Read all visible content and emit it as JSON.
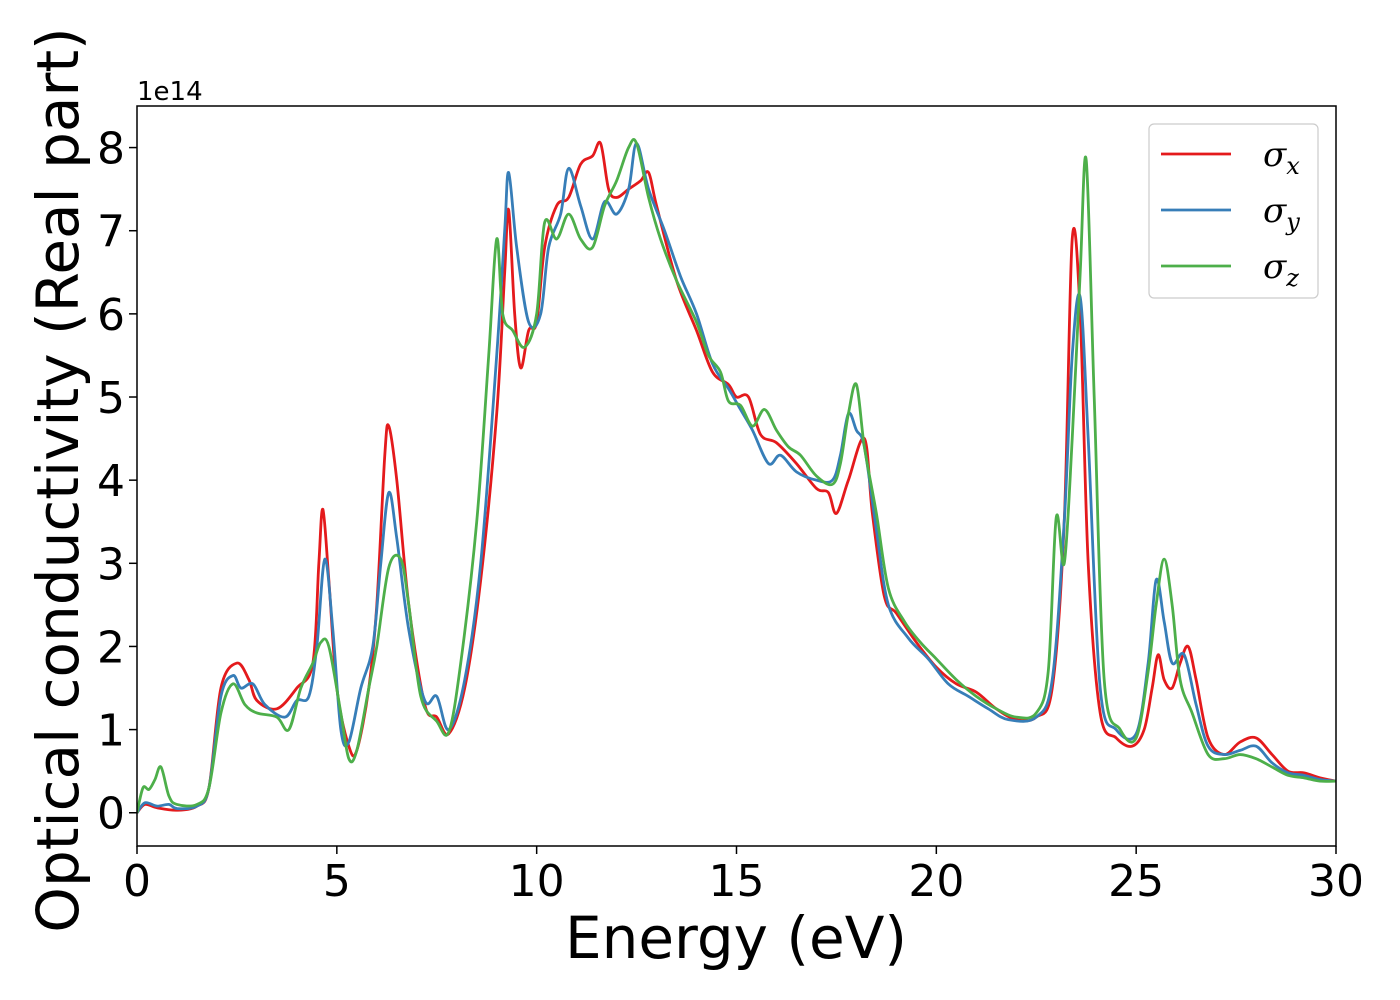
{
  "chart_data": {
    "type": "line",
    "title": "",
    "xlabel": "Energy (eV)",
    "ylabel": "Optical conductivity (Real part)",
    "y_offset_label": "1e14",
    "xlim": [
      0,
      30
    ],
    "ylim": [
      -0.4,
      8.5
    ],
    "x_ticks": [
      0,
      5,
      10,
      15,
      20,
      25,
      30
    ],
    "y_ticks": [
      0,
      1,
      2,
      3,
      4,
      5,
      6,
      7,
      8
    ],
    "grid": false,
    "legend_position": "top-right",
    "series": [
      {
        "name": "σx",
        "symbol": "σ",
        "subscript": "x",
        "color": "#e41a1c",
        "points": [
          [
            0,
            0
          ],
          [
            0.2,
            0.1
          ],
          [
            0.5,
            0.06
          ],
          [
            1.0,
            0.03
          ],
          [
            1.5,
            0.08
          ],
          [
            1.8,
            0.3
          ],
          [
            2.1,
            1.5
          ],
          [
            2.5,
            1.8
          ],
          [
            2.8,
            1.6
          ],
          [
            3.0,
            1.35
          ],
          [
            3.5,
            1.25
          ],
          [
            4.0,
            1.5
          ],
          [
            4.4,
            1.8
          ],
          [
            4.55,
            3.0
          ],
          [
            4.65,
            3.65
          ],
          [
            4.8,
            2.8
          ],
          [
            5.0,
            1.5
          ],
          [
            5.3,
            0.8
          ],
          [
            5.5,
            0.75
          ],
          [
            5.8,
            1.5
          ],
          [
            6.0,
            2.5
          ],
          [
            6.2,
            4.3
          ],
          [
            6.3,
            4.65
          ],
          [
            6.5,
            4.0
          ],
          [
            6.8,
            2.5
          ],
          [
            7.2,
            1.3
          ],
          [
            7.5,
            1.15
          ],
          [
            7.8,
            0.95
          ],
          [
            8.2,
            1.5
          ],
          [
            8.6,
            2.8
          ],
          [
            9.0,
            4.8
          ],
          [
            9.2,
            6.5
          ],
          [
            9.3,
            7.25
          ],
          [
            9.45,
            6.0
          ],
          [
            9.6,
            5.35
          ],
          [
            9.8,
            5.8
          ],
          [
            10.0,
            5.9
          ],
          [
            10.2,
            6.8
          ],
          [
            10.5,
            7.3
          ],
          [
            10.8,
            7.4
          ],
          [
            11.1,
            7.8
          ],
          [
            11.4,
            7.9
          ],
          [
            11.6,
            8.05
          ],
          [
            11.8,
            7.5
          ],
          [
            12.0,
            7.4
          ],
          [
            12.3,
            7.5
          ],
          [
            12.6,
            7.6
          ],
          [
            12.8,
            7.7
          ],
          [
            13.0,
            7.3
          ],
          [
            13.5,
            6.4
          ],
          [
            14.0,
            5.8
          ],
          [
            14.4,
            5.3
          ],
          [
            14.8,
            5.15
          ],
          [
            15.0,
            5.0
          ],
          [
            15.3,
            5.0
          ],
          [
            15.6,
            4.55
          ],
          [
            16.0,
            4.45
          ],
          [
            16.5,
            4.2
          ],
          [
            17.0,
            3.9
          ],
          [
            17.3,
            3.85
          ],
          [
            17.5,
            3.6
          ],
          [
            17.8,
            4.0
          ],
          [
            18.2,
            4.5
          ],
          [
            18.4,
            3.6
          ],
          [
            18.7,
            2.6
          ],
          [
            19.0,
            2.4
          ],
          [
            19.5,
            2.05
          ],
          [
            20.0,
            1.75
          ],
          [
            20.5,
            1.55
          ],
          [
            21.0,
            1.45
          ],
          [
            21.5,
            1.25
          ],
          [
            22.0,
            1.12
          ],
          [
            22.5,
            1.15
          ],
          [
            22.9,
            1.5
          ],
          [
            23.2,
            3.5
          ],
          [
            23.4,
            6.9
          ],
          [
            23.6,
            6.0
          ],
          [
            23.8,
            3.0
          ],
          [
            24.1,
            1.2
          ],
          [
            24.5,
            0.9
          ],
          [
            24.9,
            0.8
          ],
          [
            25.2,
            1.0
          ],
          [
            25.4,
            1.5
          ],
          [
            25.55,
            1.9
          ],
          [
            25.7,
            1.6
          ],
          [
            25.9,
            1.5
          ],
          [
            26.1,
            1.8
          ],
          [
            26.3,
            2.0
          ],
          [
            26.5,
            1.6
          ],
          [
            26.8,
            0.9
          ],
          [
            27.2,
            0.7
          ],
          [
            27.6,
            0.85
          ],
          [
            28.0,
            0.9
          ],
          [
            28.4,
            0.7
          ],
          [
            28.8,
            0.5
          ],
          [
            29.2,
            0.48
          ],
          [
            29.6,
            0.42
          ],
          [
            30.0,
            0.38
          ]
        ]
      },
      {
        "name": "σy",
        "symbol": "σ",
        "subscript": "y",
        "color": "#377eb8",
        "points": [
          [
            0,
            0
          ],
          [
            0.2,
            0.12
          ],
          [
            0.5,
            0.08
          ],
          [
            0.8,
            0.1
          ],
          [
            1.0,
            0.05
          ],
          [
            1.5,
            0.08
          ],
          [
            1.8,
            0.3
          ],
          [
            2.1,
            1.4
          ],
          [
            2.4,
            1.65
          ],
          [
            2.6,
            1.5
          ],
          [
            2.9,
            1.55
          ],
          [
            3.2,
            1.3
          ],
          [
            3.7,
            1.15
          ],
          [
            4.0,
            1.35
          ],
          [
            4.3,
            1.4
          ],
          [
            4.5,
            2.0
          ],
          [
            4.7,
            3.05
          ],
          [
            4.9,
            2.2
          ],
          [
            5.1,
            1.0
          ],
          [
            5.3,
            0.85
          ],
          [
            5.6,
            1.5
          ],
          [
            5.9,
            2.0
          ],
          [
            6.1,
            3.0
          ],
          [
            6.3,
            3.85
          ],
          [
            6.5,
            3.3
          ],
          [
            6.8,
            2.2
          ],
          [
            7.2,
            1.35
          ],
          [
            7.5,
            1.4
          ],
          [
            7.8,
            1.0
          ],
          [
            8.2,
            1.6
          ],
          [
            8.6,
            3.0
          ],
          [
            9.0,
            5.5
          ],
          [
            9.2,
            7.0
          ],
          [
            9.3,
            7.7
          ],
          [
            9.5,
            6.8
          ],
          [
            9.8,
            5.9
          ],
          [
            10.1,
            6.0
          ],
          [
            10.3,
            6.8
          ],
          [
            10.6,
            7.2
          ],
          [
            10.8,
            7.75
          ],
          [
            11.1,
            7.3
          ],
          [
            11.4,
            6.9
          ],
          [
            11.7,
            7.35
          ],
          [
            12.0,
            7.2
          ],
          [
            12.3,
            7.5
          ],
          [
            12.5,
            8.05
          ],
          [
            12.8,
            7.5
          ],
          [
            13.2,
            7.0
          ],
          [
            13.6,
            6.45
          ],
          [
            14.0,
            6.0
          ],
          [
            14.4,
            5.4
          ],
          [
            14.8,
            5.1
          ],
          [
            15.1,
            4.85
          ],
          [
            15.4,
            4.6
          ],
          [
            15.8,
            4.2
          ],
          [
            16.1,
            4.3
          ],
          [
            16.5,
            4.1
          ],
          [
            17.0,
            4.0
          ],
          [
            17.4,
            4.0
          ],
          [
            17.6,
            4.3
          ],
          [
            17.8,
            4.8
          ],
          [
            18.0,
            4.6
          ],
          [
            18.2,
            4.4
          ],
          [
            18.5,
            3.4
          ],
          [
            18.8,
            2.5
          ],
          [
            19.3,
            2.1
          ],
          [
            19.8,
            1.85
          ],
          [
            20.3,
            1.55
          ],
          [
            20.8,
            1.4
          ],
          [
            21.3,
            1.25
          ],
          [
            21.8,
            1.12
          ],
          [
            22.5,
            1.15
          ],
          [
            22.9,
            1.6
          ],
          [
            23.2,
            3.5
          ],
          [
            23.4,
            5.5
          ],
          [
            23.6,
            6.2
          ],
          [
            23.8,
            4.5
          ],
          [
            24.1,
            1.5
          ],
          [
            24.5,
            1.0
          ],
          [
            25.0,
            0.95
          ],
          [
            25.3,
            1.8
          ],
          [
            25.5,
            2.8
          ],
          [
            25.7,
            2.3
          ],
          [
            25.9,
            1.8
          ],
          [
            26.2,
            1.9
          ],
          [
            26.5,
            1.3
          ],
          [
            26.8,
            0.8
          ],
          [
            27.2,
            0.7
          ],
          [
            27.6,
            0.75
          ],
          [
            28.0,
            0.8
          ],
          [
            28.4,
            0.6
          ],
          [
            28.8,
            0.48
          ],
          [
            29.2,
            0.45
          ],
          [
            29.6,
            0.4
          ],
          [
            30.0,
            0.38
          ]
        ]
      },
      {
        "name": "σz",
        "symbol": "σ",
        "subscript": "z",
        "color": "#4daf4a",
        "points": [
          [
            0,
            0
          ],
          [
            0.15,
            0.3
          ],
          [
            0.3,
            0.28
          ],
          [
            0.45,
            0.4
          ],
          [
            0.6,
            0.55
          ],
          [
            0.8,
            0.2
          ],
          [
            1.0,
            0.1
          ],
          [
            1.5,
            0.1
          ],
          [
            1.8,
            0.3
          ],
          [
            2.1,
            1.2
          ],
          [
            2.4,
            1.55
          ],
          [
            2.7,
            1.3
          ],
          [
            3.0,
            1.2
          ],
          [
            3.5,
            1.15
          ],
          [
            3.8,
            1.0
          ],
          [
            4.1,
            1.5
          ],
          [
            4.4,
            1.8
          ],
          [
            4.6,
            2.05
          ],
          [
            4.8,
            2.0
          ],
          [
            5.1,
            1.2
          ],
          [
            5.3,
            0.65
          ],
          [
            5.5,
            0.75
          ],
          [
            5.8,
            1.5
          ],
          [
            6.0,
            2.0
          ],
          [
            6.3,
            2.95
          ],
          [
            6.6,
            3.05
          ],
          [
            6.8,
            2.5
          ],
          [
            7.1,
            1.4
          ],
          [
            7.5,
            1.1
          ],
          [
            7.8,
            0.97
          ],
          [
            8.1,
            1.8
          ],
          [
            8.5,
            3.5
          ],
          [
            8.8,
            5.5
          ],
          [
            9.0,
            6.9
          ],
          [
            9.15,
            6.0
          ],
          [
            9.4,
            5.8
          ],
          [
            9.7,
            5.6
          ],
          [
            10.0,
            6.0
          ],
          [
            10.2,
            7.1
          ],
          [
            10.5,
            6.9
          ],
          [
            10.8,
            7.2
          ],
          [
            11.1,
            6.9
          ],
          [
            11.4,
            6.8
          ],
          [
            11.7,
            7.3
          ],
          [
            12.0,
            7.6
          ],
          [
            12.3,
            8.0
          ],
          [
            12.5,
            8.05
          ],
          [
            12.8,
            7.4
          ],
          [
            13.1,
            6.9
          ],
          [
            13.5,
            6.4
          ],
          [
            14.0,
            5.9
          ],
          [
            14.3,
            5.5
          ],
          [
            14.6,
            5.3
          ],
          [
            14.8,
            4.95
          ],
          [
            15.1,
            4.9
          ],
          [
            15.4,
            4.65
          ],
          [
            15.7,
            4.85
          ],
          [
            16.0,
            4.6
          ],
          [
            16.3,
            4.4
          ],
          [
            16.6,
            4.3
          ],
          [
            17.0,
            4.05
          ],
          [
            17.4,
            3.95
          ],
          [
            17.6,
            4.2
          ],
          [
            17.8,
            4.8
          ],
          [
            18.0,
            5.15
          ],
          [
            18.2,
            4.4
          ],
          [
            18.5,
            3.6
          ],
          [
            18.8,
            2.7
          ],
          [
            19.2,
            2.3
          ],
          [
            19.6,
            2.05
          ],
          [
            20.0,
            1.85
          ],
          [
            20.5,
            1.6
          ],
          [
            21.0,
            1.4
          ],
          [
            21.5,
            1.25
          ],
          [
            22.0,
            1.15
          ],
          [
            22.5,
            1.2
          ],
          [
            22.8,
            1.7
          ],
          [
            23.0,
            3.55
          ],
          [
            23.2,
            3.0
          ],
          [
            23.4,
            4.5
          ],
          [
            23.6,
            6.5
          ],
          [
            23.75,
            7.85
          ],
          [
            23.95,
            5.0
          ],
          [
            24.2,
            1.6
          ],
          [
            24.6,
            1.0
          ],
          [
            25.0,
            0.9
          ],
          [
            25.3,
            1.7
          ],
          [
            25.5,
            2.5
          ],
          [
            25.7,
            3.05
          ],
          [
            25.9,
            2.5
          ],
          [
            26.1,
            1.6
          ],
          [
            26.4,
            1.2
          ],
          [
            26.8,
            0.7
          ],
          [
            27.2,
            0.65
          ],
          [
            27.6,
            0.7
          ],
          [
            28.0,
            0.65
          ],
          [
            28.4,
            0.55
          ],
          [
            28.8,
            0.45
          ],
          [
            29.2,
            0.42
          ],
          [
            29.6,
            0.38
          ],
          [
            30.0,
            0.38
          ]
        ]
      }
    ]
  }
}
